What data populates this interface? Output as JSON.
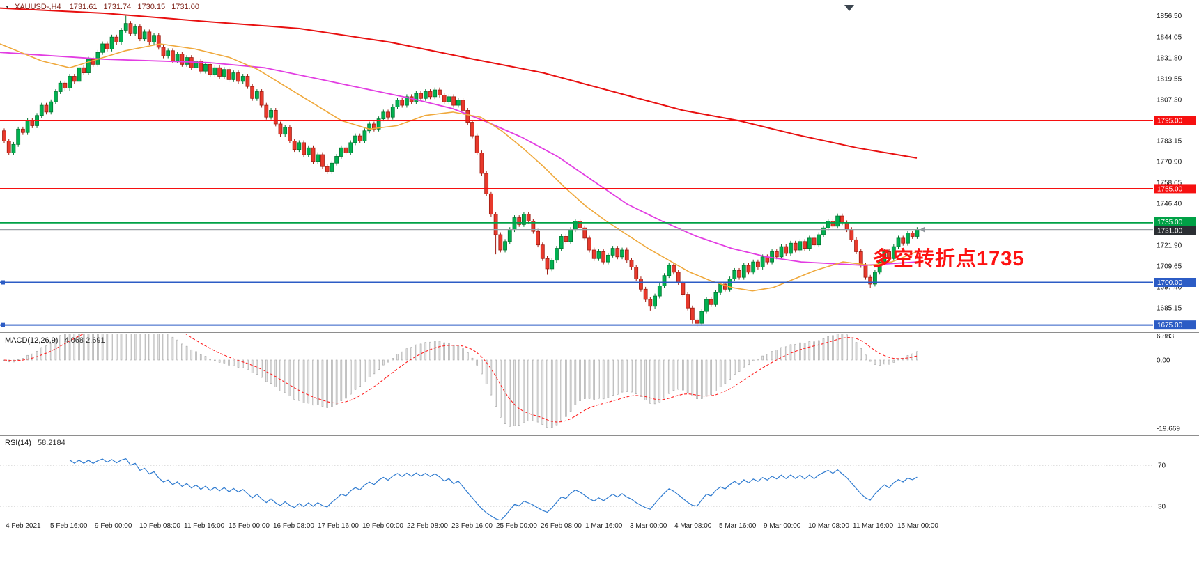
{
  "header": {
    "symbol_tf": "XAUUSD-,H4",
    "open": "1731.61",
    "high": "1731.74",
    "low": "1730.15",
    "close": "1731.00"
  },
  "annotation": {
    "text": "多空转折点1735",
    "color": "#fe1212"
  },
  "chart_data": {
    "type": "candlestick",
    "symbol": "XAUUSD-",
    "timeframe": "H4",
    "main": {
      "ylim": [
        1672,
        1863.3
      ],
      "price_ticks": [
        {
          "v": 1856.5,
          "t": "1856.50"
        },
        {
          "v": 1844.05,
          "t": "1844.05"
        },
        {
          "v": 1831.8,
          "t": "1831.80"
        },
        {
          "v": 1819.55,
          "t": "1819.55"
        },
        {
          "v": 1807.3,
          "t": "1807.30"
        },
        {
          "v": 1783.15,
          "t": "1783.15"
        },
        {
          "v": 1770.9,
          "t": "1770.90"
        },
        {
          "v": 1758.65,
          "t": "1758.65"
        },
        {
          "v": 1746.4,
          "t": "1746.40"
        },
        {
          "v": 1721.9,
          "t": "1721.90"
        },
        {
          "v": 1709.65,
          "t": "1709.65"
        },
        {
          "v": 1697.4,
          "t": "1697.40"
        },
        {
          "v": 1685.15,
          "t": "1685.15"
        }
      ],
      "hlines": [
        {
          "price": 1795,
          "t": "1795.00",
          "color": "#f61010",
          "badge": "#f61010",
          "width": 1.8
        },
        {
          "price": 1755,
          "t": "1755.00",
          "color": "#f61010",
          "badge": "#f61010",
          "width": 1.8
        },
        {
          "price": 1735,
          "t": "1735.00",
          "color": "#00a146",
          "badge": "#00a146",
          "width": 1.8
        },
        {
          "price": 1731,
          "t": "1731.00",
          "color": "#9aa0a6",
          "badge": "#2b2f33",
          "width": 1.2,
          "current": true
        },
        {
          "price": 1700,
          "t": "1700.00",
          "color": "#2c5cc5",
          "badge": "#2c5cc5",
          "width": 2,
          "handle": true
        },
        {
          "price": 1675,
          "t": "1675.00",
          "color": "#2c5cc5",
          "badge": "#2c5cc5",
          "width": 2,
          "handle": true
        }
      ],
      "candles": {
        "first_open": 1789,
        "wick": 1.4,
        "closes": [
          1783,
          1776,
          1781,
          1790,
          1788,
          1795,
          1792,
          1798,
          1804,
          1800,
          1806,
          1812,
          1817,
          1814,
          1821,
          1818,
          1826,
          1823,
          1831,
          1828,
          1835,
          1840,
          1837,
          1844,
          1841,
          1848,
          1852,
          1846,
          1850,
          1843,
          1847,
          1841,
          1845,
          1838,
          1833,
          1836,
          1830,
          1834,
          1828,
          1832,
          1826,
          1830,
          1824,
          1828,
          1822,
          1826,
          1821,
          1825,
          1819,
          1823,
          1818,
          1821,
          1815,
          1808,
          1812,
          1804,
          1797,
          1801,
          1793,
          1787,
          1791,
          1783,
          1778,
          1782,
          1775,
          1779,
          1771,
          1775,
          1768,
          1765,
          1770,
          1774,
          1779,
          1776,
          1782,
          1786,
          1783,
          1789,
          1793,
          1790,
          1796,
          1800,
          1797,
          1803,
          1807,
          1804,
          1809,
          1806,
          1811,
          1808,
          1812,
          1809,
          1813,
          1810,
          1806,
          1809,
          1804,
          1807,
          1801,
          1794,
          1786,
          1776,
          1764,
          1752,
          1740,
          1728,
          1719,
          1724,
          1731,
          1738,
          1734,
          1740,
          1736,
          1730,
          1722,
          1714,
          1708,
          1713,
          1720,
          1727,
          1724,
          1731,
          1736,
          1732,
          1726,
          1719,
          1714,
          1718,
          1712,
          1716,
          1720,
          1715,
          1719,
          1713,
          1709,
          1702,
          1696,
          1690,
          1686,
          1692,
          1698,
          1704,
          1710,
          1706,
          1700,
          1693,
          1685,
          1678,
          1676,
          1683,
          1690,
          1687,
          1694,
          1699,
          1696,
          1702,
          1707,
          1703,
          1710,
          1706,
          1712,
          1709,
          1715,
          1712,
          1718,
          1715,
          1721,
          1717,
          1723,
          1719,
          1724,
          1720,
          1726,
          1722,
          1728,
          1732,
          1736,
          1733,
          1739,
          1735,
          1731,
          1725,
          1718,
          1710,
          1703,
          1699,
          1706,
          1712,
          1718,
          1714,
          1721,
          1726,
          1723,
          1729,
          1727,
          1731
        ],
        "extremes": {
          "26": {
            "h": 1856.5
          },
          "105": {
            "l": 1716.5
          },
          "116": {
            "l": 1704.5
          },
          "138": {
            "l": 1683.5
          },
          "147": {
            "l": 1675.8
          },
          "148": {
            "l": 1673.9
          },
          "185": {
            "l": 1696.9
          }
        }
      },
      "moving_averages": [
        {
          "name": "ma-long-red",
          "color": "#e81010",
          "width": 2,
          "points": [
            [
              0,
              1861
            ],
            [
              150,
              1858
            ],
            [
              300,
              1853
            ],
            [
              430,
              1849
            ],
            [
              560,
              1841
            ],
            [
              680,
              1831
            ],
            [
              780,
              1823
            ],
            [
              880,
              1812
            ],
            [
              980,
              1801
            ],
            [
              1060,
              1795
            ],
            [
              1140,
              1787
            ],
            [
              1230,
              1779
            ],
            [
              1316,
              1773
            ]
          ]
        },
        {
          "name": "ma-mid-magenta",
          "color": "#e23de2",
          "width": 1.8,
          "points": [
            [
              0,
              1835
            ],
            [
              150,
              1831
            ],
            [
              300,
              1829
            ],
            [
              380,
              1826
            ],
            [
              450,
              1820
            ],
            [
              520,
              1814
            ],
            [
              590,
              1808
            ],
            [
              650,
              1802
            ],
            [
              700,
              1794
            ],
            [
              750,
              1785
            ],
            [
              800,
              1774
            ],
            [
              850,
              1760
            ],
            [
              900,
              1746
            ],
            [
              950,
              1736
            ],
            [
              1000,
              1727
            ],
            [
              1050,
              1720
            ],
            [
              1100,
              1715
            ],
            [
              1150,
              1712
            ],
            [
              1240,
              1710
            ],
            [
              1316,
              1712
            ]
          ]
        },
        {
          "name": "ma-fast-orange",
          "color": "#efa83b",
          "width": 1.6,
          "points": [
            [
              0,
              1840
            ],
            [
              60,
              1830
            ],
            [
              100,
              1826
            ],
            [
              140,
              1831
            ],
            [
              180,
              1836
            ],
            [
              230,
              1840
            ],
            [
              280,
              1837
            ],
            [
              330,
              1832
            ],
            [
              370,
              1825
            ],
            [
              410,
              1815
            ],
            [
              450,
              1805
            ],
            [
              490,
              1795
            ],
            [
              530,
              1790
            ],
            [
              570,
              1792
            ],
            [
              610,
              1798
            ],
            [
              650,
              1800
            ],
            [
              690,
              1797
            ],
            [
              720,
              1789
            ],
            [
              750,
              1779
            ],
            [
              780,
              1768
            ],
            [
              810,
              1756
            ],
            [
              840,
              1745
            ],
            [
              870,
              1736
            ],
            [
              900,
              1728
            ],
            [
              930,
              1720
            ],
            [
              960,
              1713
            ],
            [
              990,
              1706
            ],
            [
              1020,
              1701
            ],
            [
              1050,
              1697
            ],
            [
              1080,
              1695
            ],
            [
              1110,
              1697
            ],
            [
              1140,
              1702
            ],
            [
              1170,
              1707
            ],
            [
              1210,
              1712
            ],
            [
              1250,
              1710
            ],
            [
              1280,
              1712
            ],
            [
              1316,
              1718
            ]
          ]
        }
      ]
    },
    "macd": {
      "name": "MACD(12,26,9)",
      "values": "4.068 2.691",
      "fast": 12,
      "slow": 26,
      "signal": 9,
      "ylim": [
        -20.9,
        7.23
      ],
      "ticks": [
        {
          "v": 6.883,
          "t": "6.883"
        },
        {
          "v": 0,
          "t": "0.00"
        },
        {
          "v": -19.669,
          "t": "-19.669"
        }
      ]
    },
    "rsi": {
      "name": "RSI(14)",
      "value": "58.2184",
      "period": 14,
      "levels": [
        70,
        30
      ],
      "ylim": [
        18.5,
        97.1
      ],
      "ticks": [
        {
          "v": 70,
          "t": "70"
        },
        {
          "v": 30,
          "t": "30"
        }
      ]
    },
    "time_axis": {
      "labels": [
        "4 Feb 2021",
        "5 Feb 16:00",
        "9 Feb 00:00",
        "10 Feb 08:00",
        "11 Feb 16:00",
        "15 Feb 00:00",
        "16 Feb 08:00",
        "17 Feb 16:00",
        "19 Feb 00:00",
        "22 Feb 08:00",
        "23 Feb 16:00",
        "25 Feb 00:00",
        "26 Feb 08:00",
        "1 Mar 16:00",
        "3 Mar 00:00",
        "4 Mar 08:00",
        "5 Mar 16:00",
        "9 Mar 00:00",
        "10 Mar 08:00",
        "11 Mar 16:00",
        "15 Mar 00:00"
      ]
    }
  }
}
